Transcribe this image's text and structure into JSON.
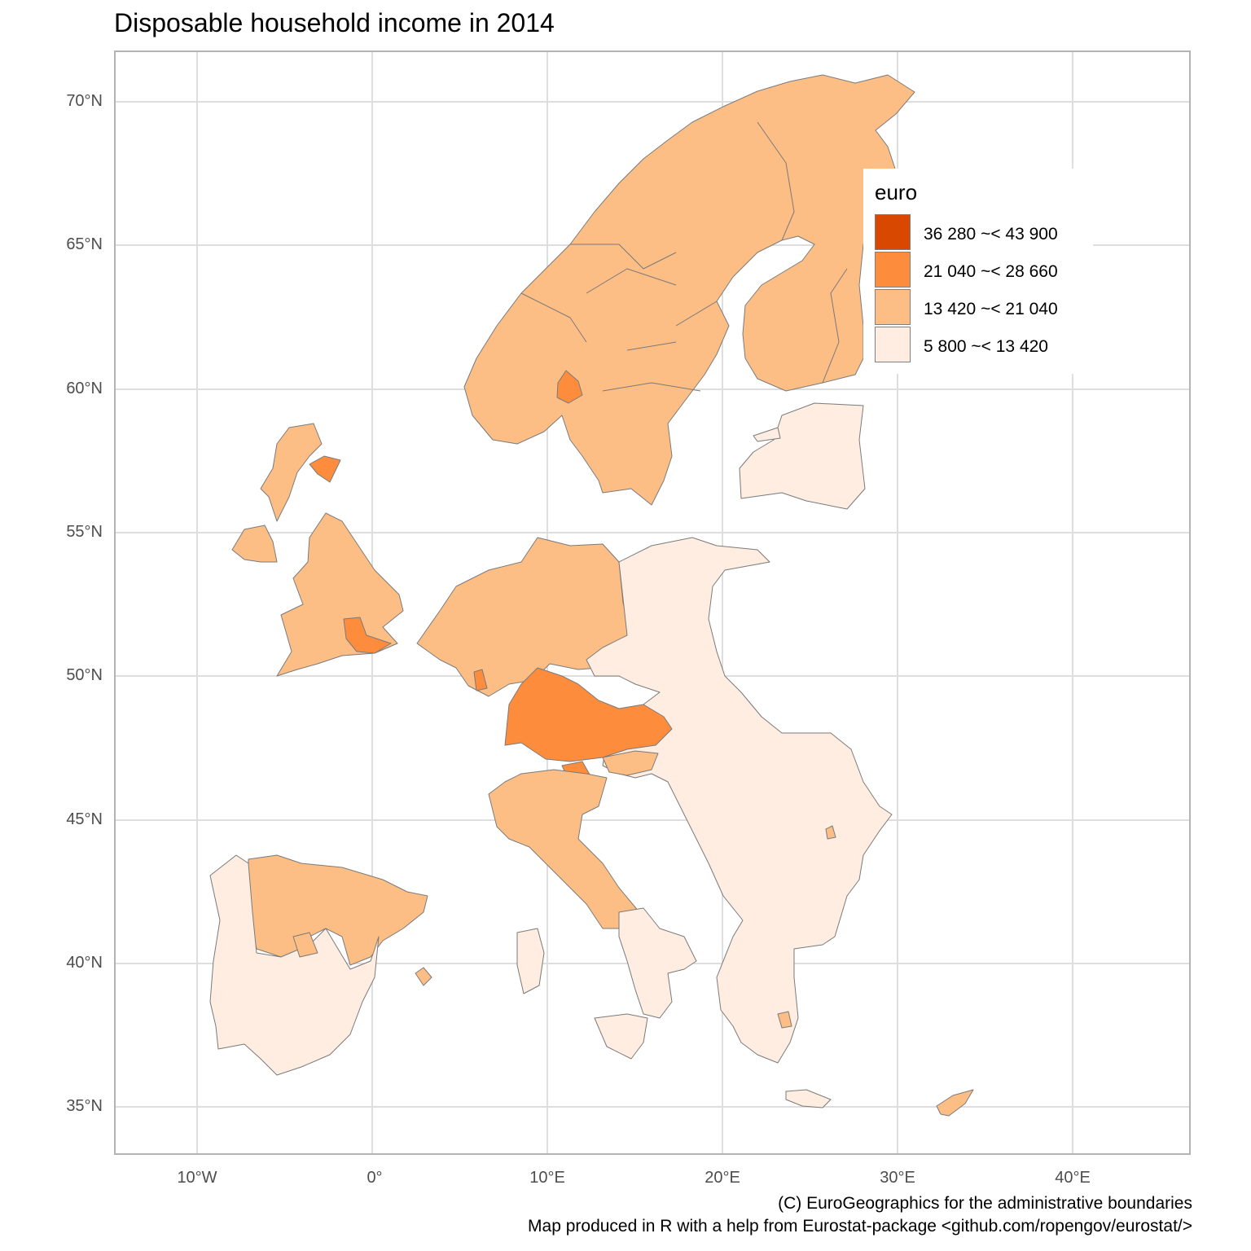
{
  "title": "Disposable household income in 2014",
  "axes": {
    "y_ticks": [
      "70°N",
      "65°N",
      "60°N",
      "55°N",
      "50°N",
      "45°N",
      "40°N",
      "35°N"
    ],
    "x_ticks": [
      "10°W",
      "0°",
      "10°E",
      "20°E",
      "30°E",
      "40°E"
    ]
  },
  "legend": {
    "title": "euro",
    "items": [
      {
        "label": "36 280 ~< 43 900",
        "color": "#d94801"
      },
      {
        "label": "21 040 ~< 28 660",
        "color": "#fd8d3c"
      },
      {
        "label": "13 420 ~< 21 040",
        "color": "#fdbe85"
      },
      {
        "label": "5 800 ~< 13 420",
        "color": "#feede0"
      }
    ]
  },
  "caption": {
    "line1": "(C) EuroGeographics for the administrative boundaries",
    "line2": "Map produced in R with a help from Eurostat-package <github.com/ropengov/eurostat/>"
  },
  "colors": {
    "grid": "#dedede",
    "border": "#b3b3b3",
    "region_outline": "#7a7a7a",
    "axis_text": "#4d4d4d"
  }
}
